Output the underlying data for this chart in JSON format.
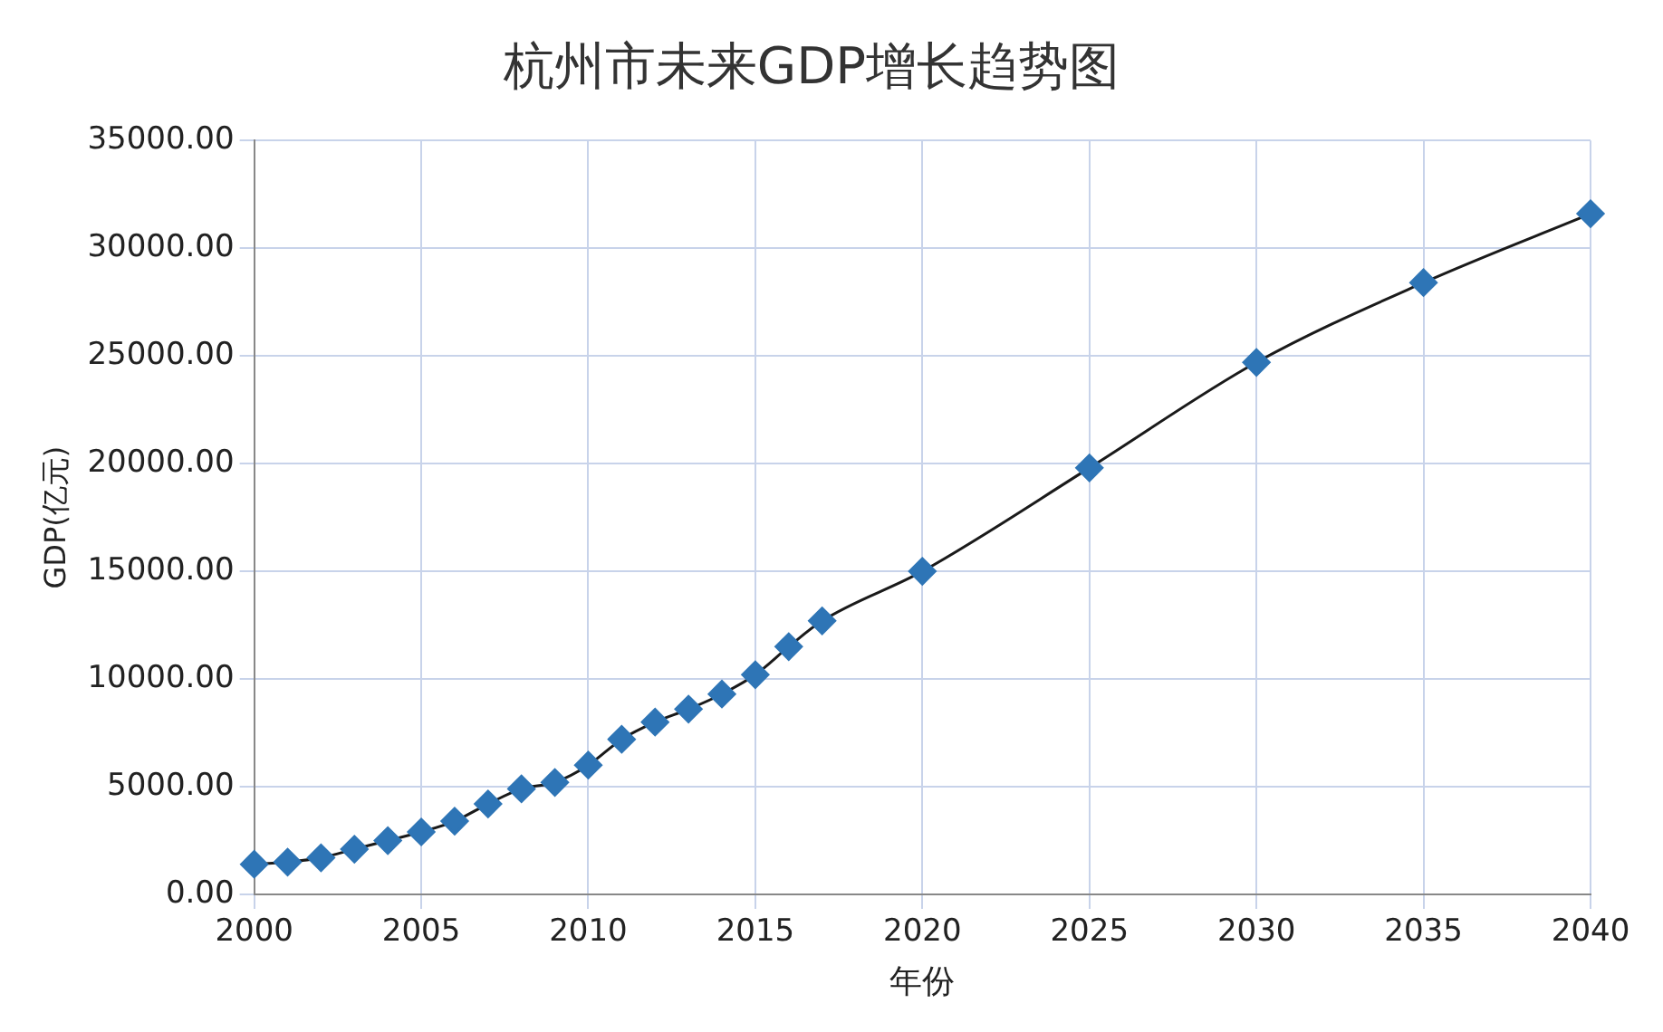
{
  "chart_data": {
    "type": "line",
    "title": "杭州市未来GDP增长趋势图",
    "xlabel": "年份",
    "ylabel": "GDP(亿元)",
    "x": [
      2000,
      2001,
      2002,
      2003,
      2004,
      2005,
      2006,
      2007,
      2008,
      2009,
      2010,
      2011,
      2012,
      2013,
      2014,
      2015,
      2016,
      2017,
      2020,
      2025,
      2030,
      2035,
      2040
    ],
    "series": [
      {
        "color": "#2e75b6",
        "values": [
          1400,
          1500,
          1700,
          2100,
          2500,
          2900,
          3400,
          4200,
          4900,
          5200,
          6000,
          7200,
          8000,
          8600,
          9300,
          10200,
          11500,
          12700,
          15000,
          19800,
          24700,
          28400,
          31600
        ]
      }
    ],
    "xlim": [
      2000,
      2040
    ],
    "xticks": [
      2000,
      2005,
      2010,
      2015,
      2020,
      2025,
      2030,
      2035,
      2040
    ],
    "ylim": [
      0,
      35000
    ],
    "yticks": [
      {
        "value": 0,
        "label": "0.00"
      },
      {
        "value": 5000,
        "label": "5000.00"
      },
      {
        "value": 10000,
        "label": "10000.00"
      },
      {
        "value": 15000,
        "label": "15000.00"
      },
      {
        "value": 20000,
        "label": "20000.00"
      },
      {
        "value": 25000,
        "label": "25000.00"
      },
      {
        "value": 30000,
        "label": "30000.00"
      },
      {
        "value": 35000,
        "label": "35000.00"
      }
    ],
    "grid": true,
    "marker": "diamond",
    "line_style": "solid",
    "legend": false
  }
}
